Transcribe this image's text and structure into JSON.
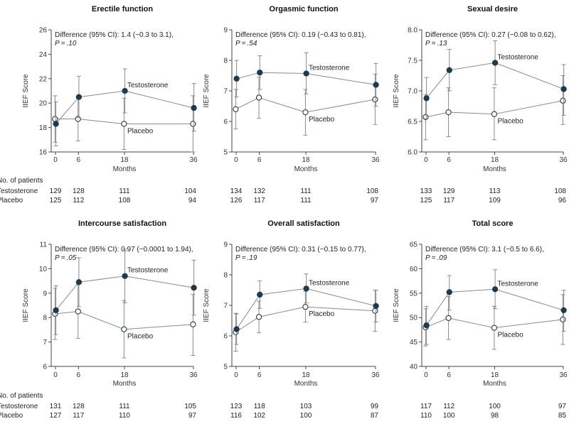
{
  "colors": {
    "testosterone": "#1f3a4a",
    "placebo": "#ffffff",
    "axis": "#444444",
    "line": "#8a8a8a"
  },
  "table_header": "No. of patients",
  "row_labels": [
    "Testosterone",
    "Placebo"
  ],
  "x_axis_label": "Months",
  "y_axis_label": "IIEF Score",
  "series_labels": [
    "Testosterone",
    "Placebo"
  ],
  "chart_data": [
    {
      "type": "line",
      "title": "Erectile function",
      "annotation": "Difference (95% CI): 1.4 (−0.3 to 3.1),",
      "pvalue": "P = .10",
      "xlabel": "Months",
      "ylabel": "IIEF Score",
      "x": [
        0,
        6,
        18,
        36
      ],
      "ylim": [
        16,
        26
      ],
      "yticks": [
        "16",
        "18",
        "20",
        "22",
        "24",
        "26"
      ],
      "series": [
        {
          "name": "Testosterone",
          "values": [
            18.3,
            20.5,
            21.0,
            19.6
          ],
          "err": [
            [
              16.5,
              20.1
            ],
            [
              18.8,
              22.2
            ],
            [
              19.2,
              22.8
            ],
            [
              17.7,
              21.6
            ]
          ]
        },
        {
          "name": "Placebo",
          "values": [
            18.7,
            18.7,
            18.3,
            18.3
          ],
          "err": [
            [
              16.8,
              20.6
            ],
            [
              16.9,
              20.5
            ],
            [
              16.2,
              20.4
            ],
            [
              16.0,
              20.6
            ]
          ]
        }
      ],
      "counts": {
        "testosterone": [
          "129",
          "128",
          "111",
          "104"
        ],
        "placebo": [
          "125",
          "112",
          "108",
          "94"
        ]
      }
    },
    {
      "type": "line",
      "title": "Orgasmic function",
      "annotation": "Difference (95% CI): 0.19 (−0.43 to 0.81),",
      "pvalue": "P = .54",
      "xlabel": "Months",
      "ylabel": "IIEF Score",
      "x": [
        0,
        6,
        18,
        36
      ],
      "ylim": [
        5,
        9
      ],
      "yticks": [
        "5",
        "6",
        "7",
        "8",
        "9"
      ],
      "series": [
        {
          "name": "Testosterone",
          "values": [
            7.4,
            7.6,
            7.57,
            7.2
          ],
          "err": [
            [
              6.8,
              8.0
            ],
            [
              7.05,
              8.15
            ],
            [
              6.9,
              8.25
            ],
            [
              6.5,
              7.9
            ]
          ]
        },
        {
          "name": "Placebo",
          "values": [
            6.4,
            6.78,
            6.3,
            6.72
          ],
          "err": [
            [
              5.75,
              7.05
            ],
            [
              6.1,
              7.45
            ],
            [
              5.55,
              7.05
            ],
            [
              5.9,
              7.55
            ]
          ]
        }
      ],
      "counts": {
        "testosterone": [
          "134",
          "132",
          "111",
          "108"
        ],
        "placebo": [
          "126",
          "117",
          "111",
          "97"
        ]
      }
    },
    {
      "type": "line",
      "title": "Sexual desire",
      "annotation": "Difference (95% CI): 0.27 (−0.08 to 0.62),",
      "pvalue": "P = .13",
      "xlabel": "Months",
      "ylabel": "IIEF Score",
      "x": [
        0,
        6,
        18,
        36
      ],
      "ylim": [
        6.0,
        8.0
      ],
      "yticks": [
        "6.0",
        "6.5",
        "7.0",
        "7.5",
        "8.0"
      ],
      "series": [
        {
          "name": "Testosterone",
          "values": [
            6.88,
            7.34,
            7.46,
            7.03
          ],
          "err": [
            [
              6.55,
              7.22
            ],
            [
              7.0,
              7.68
            ],
            [
              7.1,
              7.82
            ],
            [
              6.6,
              7.43
            ]
          ]
        },
        {
          "name": "Placebo",
          "values": [
            6.57,
            6.65,
            6.62,
            6.84
          ],
          "err": [
            [
              6.2,
              6.94
            ],
            [
              6.25,
              7.05
            ],
            [
              6.2,
              7.05
            ],
            [
              6.45,
              7.25
            ]
          ]
        }
      ],
      "counts": {
        "testosterone": [
          "133",
          "129",
          "113",
          "108"
        ],
        "placebo": [
          "125",
          "117",
          "109",
          "96"
        ]
      }
    },
    {
      "type": "line",
      "title": "Intercourse satisfaction",
      "annotation": "Difference (95% CI): 0.97 (−0.0001 to 1.94),",
      "pvalue": "P = .05",
      "xlabel": "Months",
      "ylabel": "IIEF Score",
      "x": [
        0,
        6,
        18,
        36
      ],
      "ylim": [
        6,
        11
      ],
      "yticks": [
        "6",
        "7",
        "8",
        "9",
        "10",
        "11"
      ],
      "series": [
        {
          "name": "Testosterone",
          "values": [
            8.3,
            9.45,
            9.7,
            9.22
          ],
          "err": [
            [
              7.3,
              9.3
            ],
            [
              8.45,
              10.45
            ],
            [
              8.6,
              10.8
            ],
            [
              8.1,
              10.35
            ]
          ]
        },
        {
          "name": "Placebo",
          "values": [
            8.15,
            8.25,
            7.52,
            7.72
          ],
          "err": [
            [
              7.1,
              9.2
            ],
            [
              7.15,
              9.35
            ],
            [
              6.35,
              8.7
            ],
            [
              6.45,
              8.95
            ]
          ]
        }
      ],
      "counts": {
        "testosterone": [
          "131",
          "128",
          "111",
          "105"
        ],
        "placebo": [
          "127",
          "117",
          "110",
          "97"
        ]
      }
    },
    {
      "type": "line",
      "title": "Overall satisfaction",
      "annotation": "Difference (95% CI): 0.31 (−0.15 to 0.77),",
      "pvalue": "P = .19",
      "xlabel": "Months",
      "ylabel": "IIEF Score",
      "x": [
        0,
        6,
        18,
        36
      ],
      "ylim": [
        5,
        9
      ],
      "yticks": [
        "5",
        "6",
        "7",
        "8",
        "9"
      ],
      "series": [
        {
          "name": "Testosterone",
          "values": [
            6.22,
            7.35,
            7.55,
            6.98
          ],
          "err": [
            [
              5.72,
              6.72
            ],
            [
              6.9,
              7.8
            ],
            [
              7.08,
              8.03
            ],
            [
              6.45,
              7.5
            ]
          ]
        },
        {
          "name": "Placebo",
          "values": [
            6.12,
            6.62,
            6.95,
            6.82
          ],
          "err": [
            [
              5.5,
              6.74
            ],
            [
              6.1,
              7.14
            ],
            [
              6.45,
              7.45
            ],
            [
              6.15,
              7.5
            ]
          ]
        }
      ],
      "counts": {
        "testosterone": [
          "123",
          "118",
          "103",
          "99"
        ],
        "placebo": [
          "116",
          "102",
          "100",
          "87"
        ]
      }
    },
    {
      "type": "line",
      "title": "Total score",
      "annotation": "Difference (95% CI): 3.1 (−0.5 to 6.6),",
      "pvalue": "P = .09",
      "xlabel": "Months",
      "ylabel": "IIEF Score",
      "x": [
        0,
        6,
        18,
        36
      ],
      "ylim": [
        40,
        65
      ],
      "yticks": [
        "40",
        "45",
        "50",
        "55",
        "60",
        "65"
      ],
      "series": [
        {
          "name": "Testosterone",
          "values": [
            48.4,
            55.2,
            55.8,
            51.5
          ],
          "err": [
            [
              44.5,
              52.3
            ],
            [
              51.5,
              58.6
            ],
            [
              51.8,
              59.8
            ],
            [
              47.2,
              55.6
            ]
          ]
        },
        {
          "name": "Placebo",
          "values": [
            48.0,
            49.9,
            47.9,
            49.6
          ],
          "err": [
            [
              44.2,
              51.8
            ],
            [
              45.5,
              54.3
            ],
            [
              43.5,
              52.3
            ],
            [
              44.5,
              54.7
            ]
          ]
        }
      ],
      "counts": {
        "testosterone": [
          "117",
          "112",
          "100",
          "97"
        ],
        "placebo": [
          "110",
          "100",
          "98",
          "85"
        ]
      }
    }
  ]
}
